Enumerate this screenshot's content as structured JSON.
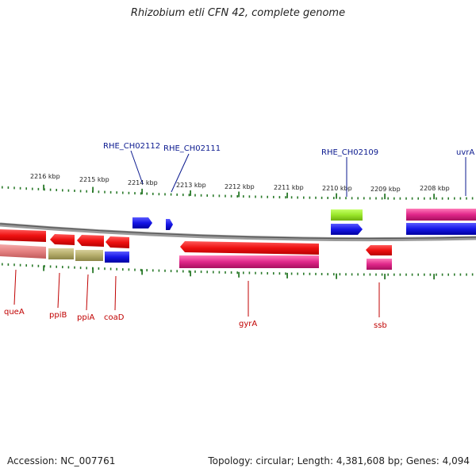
{
  "title": "Rhizobium etli CFN 42, complete genome",
  "footer": {
    "accession": "Accession: NC_007761",
    "summary": "Topology: circular; Length: 4,381,608 bp; Genes: 4,094"
  },
  "ruler": {
    "labels": [
      "2216 kbp",
      "2215 kbp",
      "2214 kbp",
      "2213 kbp",
      "2212 kbp",
      "2211 kbp",
      "2210 kbp",
      "2209 kbp",
      "2208 kbp"
    ]
  },
  "colors": {
    "red": "#ee1111",
    "magenta": "#e0278a",
    "blue": "#1515e6",
    "olive": "#b5ad6a",
    "salmon": "#e48080",
    "lime": "#99e62a",
    "top_label": "#0b1a8f",
    "bottom_label": "#c00000",
    "tick": "#2a7a2a"
  },
  "genes_top": [
    {
      "name": "RHE_CH02112"
    },
    {
      "name": "RHE_CH02111"
    },
    {
      "name": "RHE_CH02109"
    },
    {
      "name": "uvrA"
    }
  ],
  "genes_bottom": [
    {
      "name": "queA"
    },
    {
      "name": "ppiB"
    },
    {
      "name": "ppiA"
    },
    {
      "name": "coaD"
    },
    {
      "name": "gyrA"
    },
    {
      "name": "ssb"
    }
  ]
}
